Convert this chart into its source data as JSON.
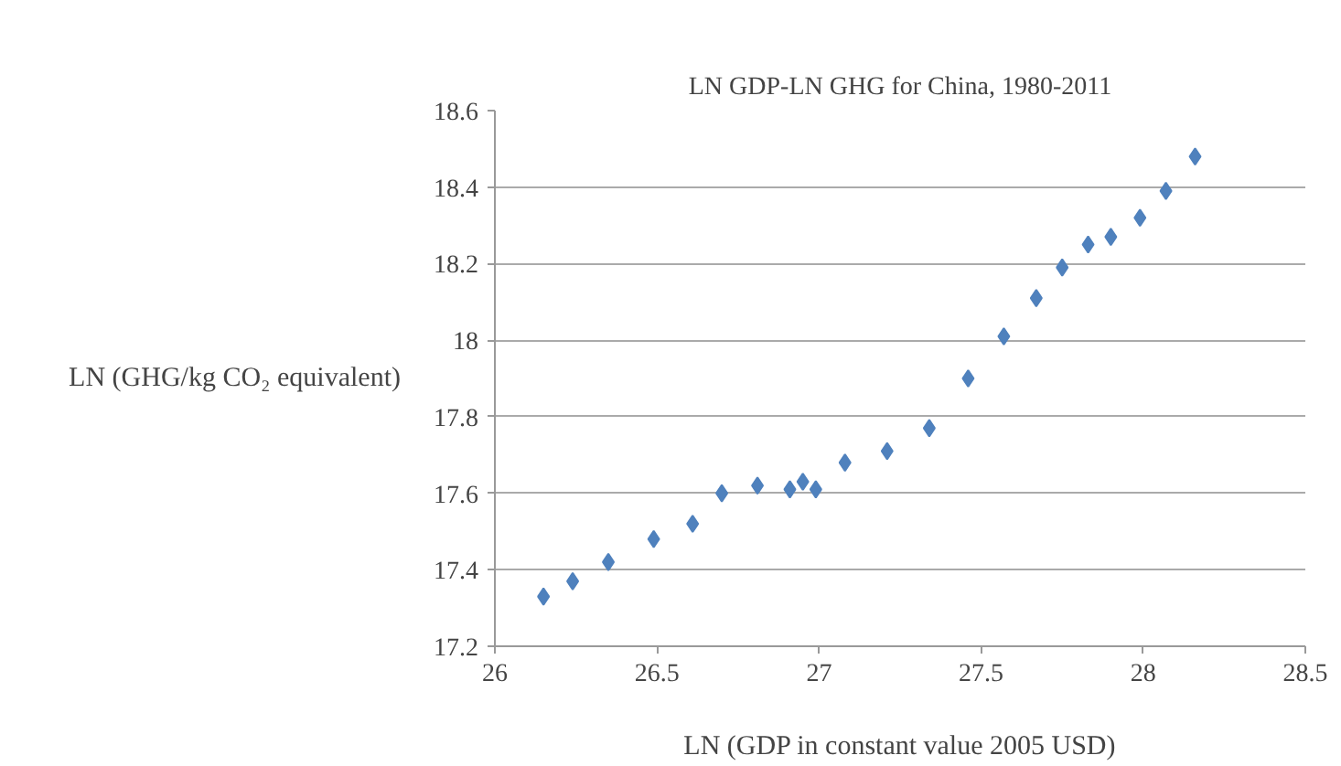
{
  "chart_data": {
    "type": "scatter",
    "title": "LN GDP-LN GHG for China, 1980-2011",
    "xlabel": "LN (GDP in constant value 2005 USD)",
    "ylabel": "LN (GHG/kg CO₂ equivalent)",
    "x": [
      26.15,
      26.24,
      26.35,
      26.49,
      26.61,
      26.7,
      26.81,
      26.91,
      26.95,
      26.99,
      27.08,
      27.21,
      27.34,
      27.46,
      27.57,
      27.67,
      27.75,
      27.83,
      27.9,
      27.99,
      28.07,
      28.16
    ],
    "series": [
      {
        "color": "#4f81bd",
        "values": [
          17.33,
          17.37,
          17.42,
          17.48,
          17.52,
          17.6,
          17.62,
          17.61,
          17.63,
          17.61,
          17.68,
          17.71,
          17.77,
          17.9,
          18.01,
          18.11,
          18.19,
          18.25,
          18.27,
          18.32,
          18.39,
          18.48
        ]
      }
    ],
    "xlim": [
      26,
      28.5
    ],
    "xticks": [
      26,
      26.5,
      27,
      27.5,
      28,
      28.5
    ],
    "ylim": [
      17.2,
      18.6
    ],
    "yticks": [
      17.2,
      17.4,
      17.6,
      17.8,
      18,
      18.2,
      18.4,
      18.6
    ],
    "grid": "y",
    "marker": "diamond"
  }
}
